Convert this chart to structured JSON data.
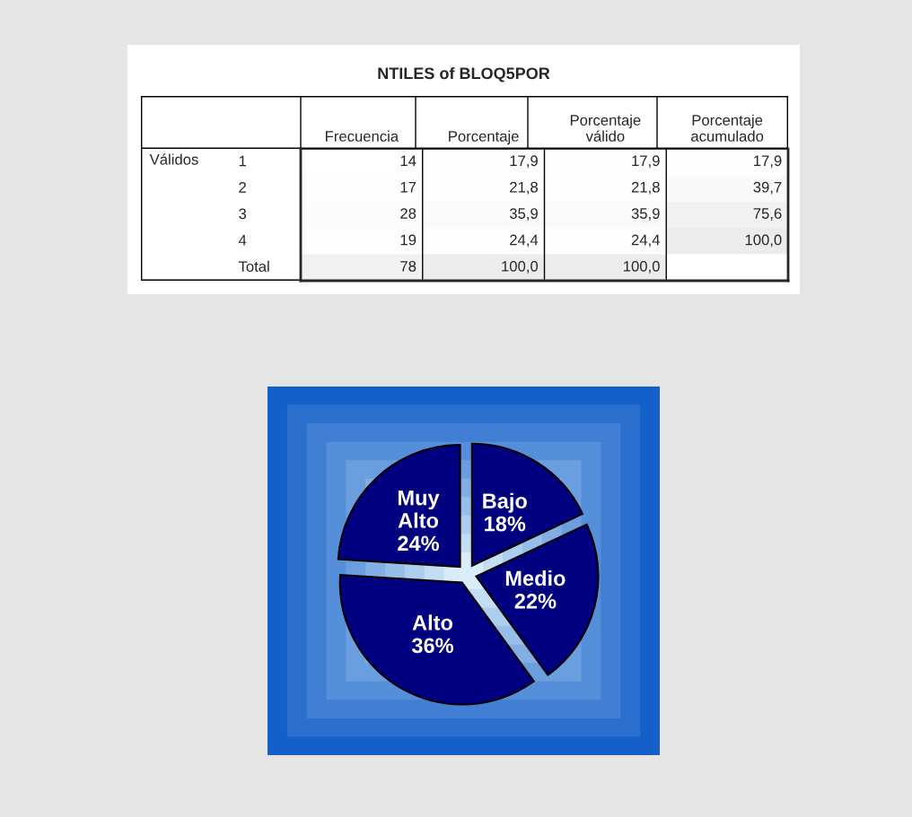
{
  "chart_data": [
    {
      "type": "heatmap",
      "title": "NTILES of BLOQ5POR",
      "ylabel": "Válidos",
      "color": "#ffffff",
      "categories": [
        "Frecuencia",
        "Porcentaje",
        "Porcentaje\nválido",
        "Porcentaje\nacumulado"
      ],
      "y_categories": [
        "1",
        "2",
        "3",
        "4",
        "Total"
      ],
      "cells": [
        [
          14,
          17.9,
          17.9,
          17.9
        ],
        [
          17,
          21.8,
          21.8,
          39.7
        ],
        [
          28,
          35.9,
          35.9,
          75.6
        ],
        [
          19,
          24.4,
          24.4,
          100.0
        ],
        [
          78,
          100.0,
          100.0,
          null
        ]
      ],
      "cell_labels": [
        [
          "14",
          "17,9",
          "17,9",
          "17,9"
        ],
        [
          "17",
          "21,8",
          "21,8",
          "39,7"
        ],
        [
          "28",
          "35,9",
          "35,9",
          "75,6"
        ],
        [
          "19",
          "24,4",
          "24,4",
          "100,0"
        ],
        [
          "78",
          "100,0",
          "100,0",
          null
        ]
      ]
    },
    {
      "type": "pie",
      "categories": [
        "Bajo",
        "Medio",
        "Alto",
        "Muy\nAlto"
      ],
      "values": [
        18,
        22,
        36,
        24
      ],
      "value_labels": [
        "18%",
        "22%",
        "36%",
        "24%"
      ],
      "colors": [
        "#000080",
        "#000080",
        "#000080",
        "#000080"
      ]
    }
  ]
}
